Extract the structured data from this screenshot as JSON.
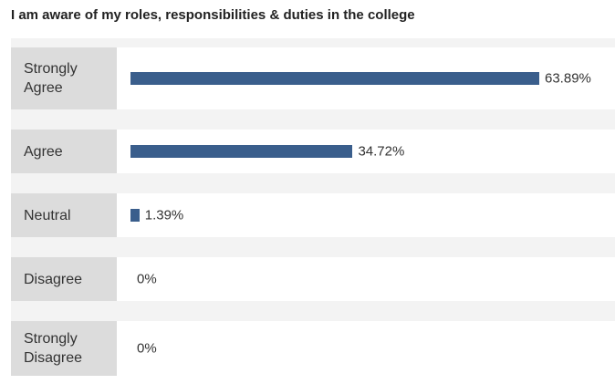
{
  "chart_data": {
    "type": "bar",
    "orientation": "horizontal",
    "title": "I am aware of my roles, responsibilities & duties in the college",
    "categories": [
      "Strongly Agree",
      "Agree",
      "Neutral",
      "Disagree",
      "Strongly Disagree"
    ],
    "values": [
      63.89,
      34.72,
      1.39,
      0,
      0
    ],
    "value_labels": [
      "63.89%",
      "34.72%",
      "1.39%",
      "0%",
      "0%"
    ],
    "xlim": [
      0,
      63.89
    ],
    "bar_color": "#3a5e8c",
    "category_box_color": "#dcdcdc",
    "grid": false,
    "legend": "none"
  }
}
